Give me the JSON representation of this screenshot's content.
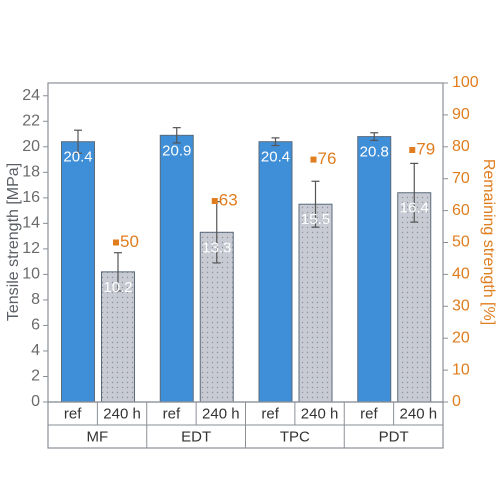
{
  "chart_data": {
    "type": "bar",
    "y_label": "Tensile strength [MPa]",
    "y2_label": "Remaining strength [%]",
    "categories": [
      "MF",
      "EDT",
      "TPC",
      "PDT"
    ],
    "series": [
      {
        "name": "ref",
        "color": "#3f8fd8",
        "values": [
          20.4,
          20.9,
          20.4,
          20.8
        ],
        "errors": [
          0.9,
          0.6,
          0.3,
          0.3
        ]
      },
      {
        "name": "240 h",
        "color": "#c8cbd3",
        "values": [
          10.2,
          13.3,
          15.5,
          16.4
        ],
        "errors": [
          1.5,
          2.4,
          1.8,
          2.3
        ]
      },
      {
        "name": "Remaining strength",
        "color": "#e07d1e",
        "axis": "y2",
        "values": [
          50,
          63,
          76,
          79
        ]
      }
    ],
    "ylim": [
      0,
      25
    ],
    "yticks": [
      0,
      2,
      4,
      6,
      8,
      10,
      12,
      14,
      16,
      18,
      20,
      22,
      24
    ],
    "y2lim": [
      0,
      100
    ],
    "y2ticks": [
      0,
      10,
      20,
      30,
      40,
      50,
      60,
      70,
      80,
      90,
      100
    ]
  }
}
